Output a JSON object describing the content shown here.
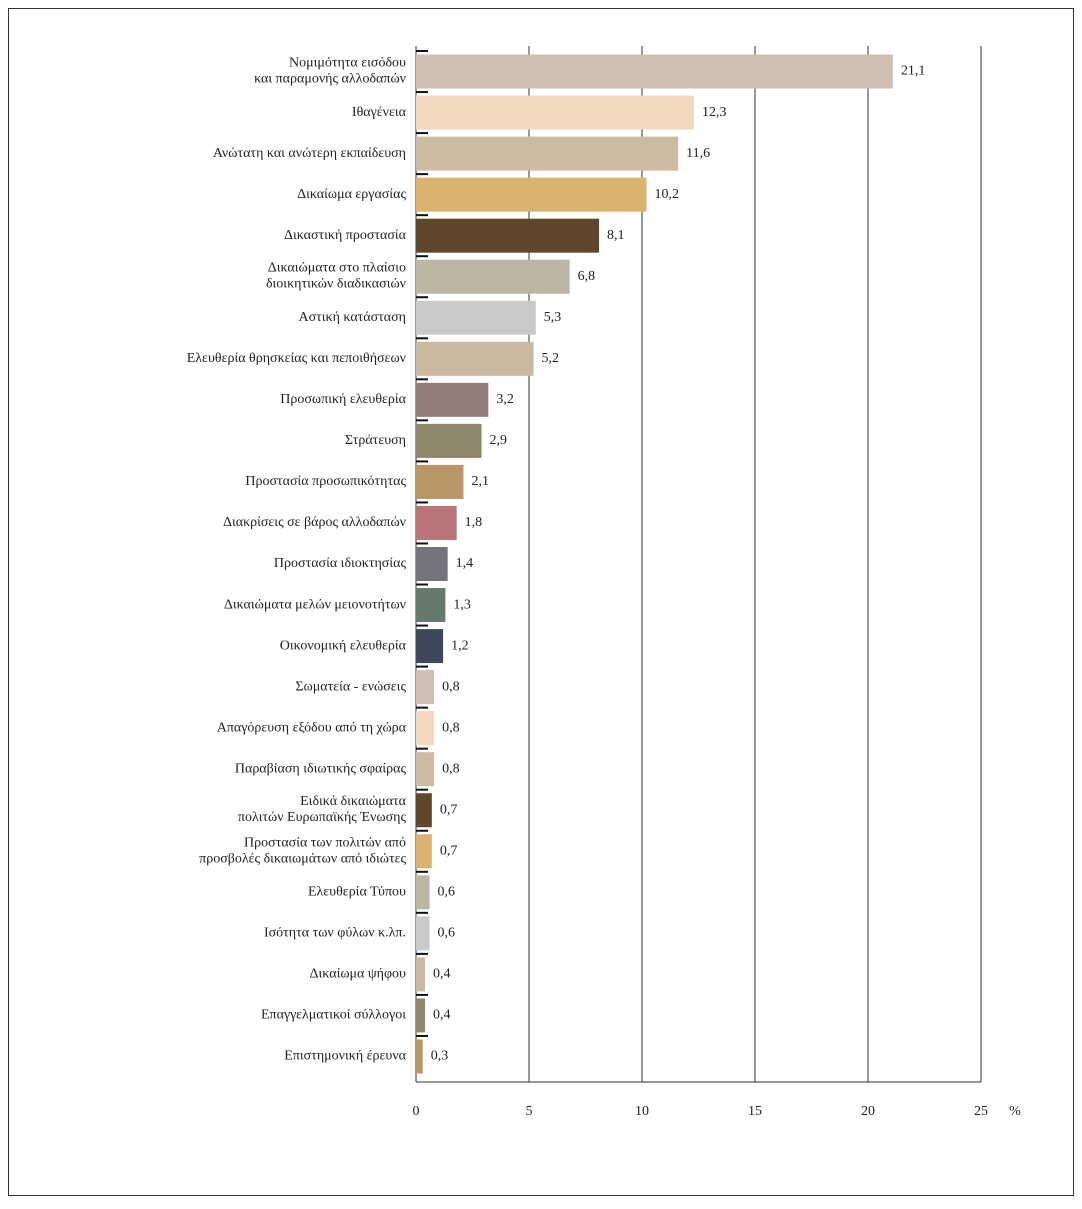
{
  "chart_data": {
    "type": "barh",
    "categories": [
      "Νομιμότητα εισόδου\nκαι παραμονής αλλοδαπών",
      "Ιθαγένεια",
      "Ανώτατη και ανώτερη εκπαίδευση",
      "Δικαίωμα εργασίας",
      "Δικαστική προστασία",
      "Δικαιώματα στο πλαίσιο\nδιοικητικών διαδικασιών",
      "Αστική κατάσταση",
      "Ελευθερία θρησκείας και πεποιθήσεων",
      "Προσωπική ελευθερία",
      "Στράτευση",
      "Προστασία προσωπικότητας",
      "Διακρίσεις σε βάρος αλλοδαπών",
      "Προστασία ιδιοκτησίας",
      "Δικαιώματα μελών μειονοτήτων",
      "Οικονομική ελευθερία",
      "Σωματεία - ενώσεις",
      "Απαγόρευση εξόδου από τη χώρα",
      "Παραβίαση ιδιωτικής σφαίρας",
      "Ειδικά δικαιώματα\nπολιτών Ευρωπαϊκής Ένωσης",
      "Προστασία των πολιτών από\nπροσβολές δικαιωμάτων από ιδιώτες",
      "Ελευθερία Τύπου",
      "Ισότητα των φύλων κ.λπ.",
      "Δικαίωμα ψήφου",
      "Επαγγελματικοί σύλλογοι",
      "Επιστημονική έρευνα"
    ],
    "values": [
      21.1,
      12.3,
      11.6,
      10.2,
      8.1,
      6.8,
      5.3,
      5.2,
      3.2,
      2.9,
      2.1,
      1.8,
      1.4,
      1.3,
      1.2,
      0.8,
      0.8,
      0.8,
      0.7,
      0.7,
      0.6,
      0.6,
      0.4,
      0.4,
      0.3
    ],
    "value_labels": [
      "21,1",
      "12,3",
      "11,6",
      "10,2",
      "8,1",
      "6,8",
      "5,3",
      "5,2",
      "3,2",
      "2,9",
      "2,1",
      "1,8",
      "1,4",
      "1,3",
      "1,2",
      "0,8",
      "0,8",
      "0,8",
      "0,7",
      "0,7",
      "0,6",
      "0,6",
      "0,4",
      "0,4",
      "0,3"
    ],
    "colors": [
      "#cdbfb4",
      "#f0d9bf",
      "#cdbca4",
      "#d9b36f",
      "#5e472b",
      "#beb6a4",
      "#c9c9c9",
      "#c9b9a1",
      "#937d78",
      "#8e866a",
      "#b89668",
      "#b97479",
      "#76737d",
      "#667a6b",
      "#3f475c",
      "#cdbfb4",
      "#f0d9bf",
      "#cdbca4",
      "#5e472b",
      "#d9b36f",
      "#beb6a4",
      "#c9c9c9",
      "#c9b9a1",
      "#8e866a",
      "#b89668"
    ],
    "xlabel": "%",
    "xlim": [
      0,
      25
    ],
    "xticks": [
      0,
      5,
      10,
      15,
      20,
      25
    ],
    "grid": true
  }
}
